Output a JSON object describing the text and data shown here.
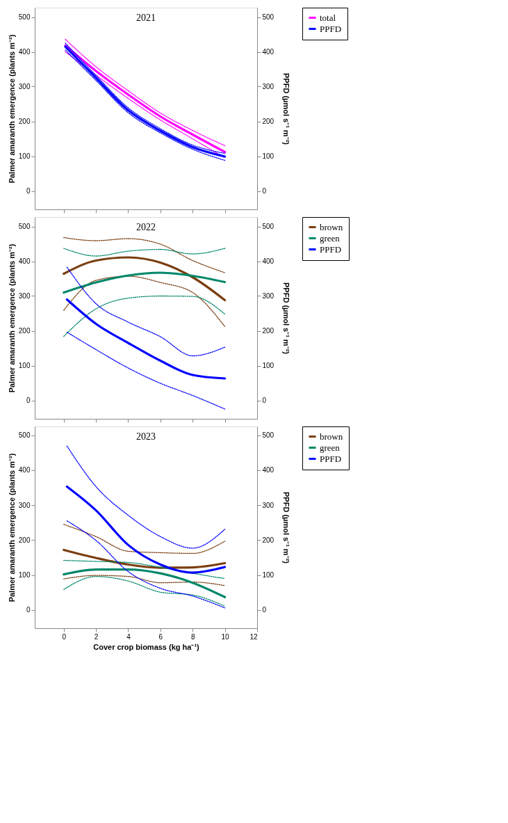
{
  "chart_data": [
    {
      "type": "line",
      "title": "2021",
      "ylabel": "Palmer amaranth emergence (plants m⁻²)",
      "y2label": "PPFD (µmol s⁻¹ m⁻²)",
      "xlim": [
        -1.8,
        12
      ],
      "xticks": [
        0,
        2,
        4,
        6,
        8,
        10
      ],
      "ylim": [
        -53,
        527
      ],
      "yticks": [
        0,
        100,
        200,
        300,
        400,
        500
      ],
      "y2lim": [
        -53,
        527
      ],
      "y2ticks": [
        0,
        100,
        200,
        300,
        400,
        500
      ],
      "tick_labels": "y",
      "grid": false,
      "line_style": "solid",
      "legend": "right",
      "series": [
        {
          "name": "total",
          "color": "#ff00ff",
          "x": [
            0.1,
            2,
            4,
            6,
            8,
            10
          ],
          "values": [
            418,
            345,
            277,
            214,
            162,
            112
          ]
        },
        {
          "color": "#ff00ff",
          "line_style": "dotted",
          "x": [
            0.1,
            2,
            4,
            6,
            8,
            10
          ],
          "values": [
            400,
            333,
            266,
            204,
            150,
            95
          ]
        },
        {
          "color": "#ff00ff",
          "line_style": "dotted",
          "x": [
            0.1,
            2,
            4,
            6,
            8,
            10
          ],
          "values": [
            436,
            357,
            288,
            224,
            174,
            130
          ]
        },
        {
          "name": "PPFD",
          "color": "#0000ff",
          "axis": "y2",
          "x": [
            0.1,
            2,
            4,
            6,
            8,
            10
          ],
          "values": [
            415,
            325,
            232,
            173,
            126,
            99
          ]
        },
        {
          "color": "#0000ff",
          "axis": "y2",
          "line_style": "dotted",
          "x": [
            0.1,
            2,
            4,
            6,
            8,
            10
          ],
          "values": [
            405,
            318,
            225,
            167,
            120,
            88
          ]
        },
        {
          "color": "#0000ff",
          "axis": "y2",
          "line_style": "dotted",
          "x": [
            0.1,
            2,
            4,
            6,
            8,
            10
          ],
          "values": [
            425,
            332,
            239,
            179,
            132,
            108
          ]
        }
      ]
    },
    {
      "type": "line",
      "title": "2022",
      "ylabel": "Palmer amaranth emergence (plants m⁻²)",
      "y2label": "PPFD (µmol s⁻¹ m⁻²)",
      "xlim": [
        -1.8,
        12
      ],
      "xticks": [
        0,
        2,
        4,
        6,
        8,
        10
      ],
      "ylim": [
        -53,
        527
      ],
      "yticks": [
        0,
        100,
        200,
        300,
        400,
        500
      ],
      "y2lim": [
        -53,
        527
      ],
      "y2ticks": [
        0,
        100,
        200,
        300,
        400,
        500
      ],
      "tick_labels": "y",
      "grid": false,
      "line_style": "solid",
      "legend": "right",
      "series": [
        {
          "name": "brown",
          "color": "#7a3e10",
          "x": [
            0,
            2,
            4,
            6,
            8,
            10
          ],
          "values": [
            364,
            402,
            411,
            396,
            354,
            288
          ]
        },
        {
          "color": "#7a3e10",
          "line_style": "dotted",
          "x": [
            0,
            2,
            4,
            6,
            8,
            10
          ],
          "values": [
            259,
            345,
            357,
            339,
            310,
            212
          ]
        },
        {
          "color": "#7a3e10",
          "line_style": "dotted",
          "x": [
            0,
            2,
            4,
            6,
            8,
            10
          ],
          "values": [
            468,
            459,
            465,
            449,
            402,
            367
          ]
        },
        {
          "name": "green",
          "color": "#00876a",
          "x": [
            0,
            2,
            4,
            6,
            8,
            10
          ],
          "values": [
            310,
            339,
            359,
            367,
            358,
            340
          ]
        },
        {
          "color": "#00876a",
          "line_style": "dotted",
          "x": [
            0,
            2,
            4,
            6,
            8,
            10
          ],
          "values": [
            184,
            263,
            294,
            300,
            299,
            248
          ]
        },
        {
          "color": "#00876a",
          "line_style": "dotted",
          "x": [
            0,
            2,
            4,
            6,
            8,
            10
          ],
          "values": [
            437,
            415,
            429,
            434,
            421,
            437
          ]
        },
        {
          "name": "PPFD",
          "color": "#0000ff",
          "axis": "y2",
          "x": [
            0.2,
            2,
            4,
            6,
            8,
            10
          ],
          "values": [
            290,
            220,
            165,
            114,
            73,
            63
          ]
        },
        {
          "color": "#0000ff",
          "axis": "y2",
          "line_style": "dotted",
          "x": [
            0.2,
            2,
            4,
            6,
            8,
            10
          ],
          "values": [
            196,
            146,
            93,
            49,
            14,
            -25
          ]
        },
        {
          "color": "#0000ff",
          "axis": "y2",
          "line_style": "dotted",
          "x": [
            0.2,
            2,
            4,
            6,
            8,
            10
          ],
          "values": [
            383,
            278,
            225,
            183,
            128,
            153
          ]
        }
      ]
    },
    {
      "type": "line",
      "title": "2023",
      "xlabel": "Cover crop biomass (kg ha⁻¹)",
      "ylabel": "Palmer amaranth emergence (plants m⁻²)",
      "y2label": "PPFD (µmol s⁻¹ m⁻²)",
      "xlim": [
        -1.8,
        12
      ],
      "xticks": [
        0,
        2,
        4,
        6,
        8,
        10,
        12
      ],
      "ylim": [
        -52,
        525
      ],
      "yticks": [
        0,
        100,
        200,
        300,
        400,
        500
      ],
      "y2lim": [
        -52,
        525
      ],
      "y2ticks": [
        0,
        100,
        200,
        300,
        400,
        500
      ],
      "grid": false,
      "line_style": "solid",
      "legend": "right",
      "series": [
        {
          "name": "brown",
          "color": "#7a3e10",
          "x": [
            0,
            2,
            4,
            6,
            8,
            10
          ],
          "values": [
            172,
            149,
            130,
            121,
            122,
            134
          ]
        },
        {
          "color": "#7a3e10",
          "line_style": "dotted",
          "x": [
            0,
            2,
            4,
            6,
            8,
            10
          ],
          "values": [
            89,
            99,
            96,
            78,
            80,
            70
          ]
        },
        {
          "color": "#7a3e10",
          "line_style": "dotted",
          "x": [
            0,
            2,
            4,
            6,
            8,
            10
          ],
          "values": [
            245,
            210,
            168,
            164,
            162,
            197
          ]
        },
        {
          "name": "green",
          "color": "#00876a",
          "x": [
            0,
            2,
            4,
            6,
            8,
            10
          ],
          "values": [
            102,
            116,
            116,
            105,
            78,
            37
          ]
        },
        {
          "color": "#00876a",
          "line_style": "dotted",
          "x": [
            0,
            2,
            4,
            6,
            8,
            10
          ],
          "values": [
            59,
            96,
            83,
            51,
            43,
            11
          ]
        },
        {
          "color": "#00876a",
          "line_style": "dotted",
          "x": [
            0,
            2,
            4,
            6,
            8,
            10
          ],
          "values": [
            142,
            139,
            136,
            122,
            105,
            90
          ]
        },
        {
          "name": "PPFD",
          "color": "#0000ff",
          "axis": "y2",
          "x": [
            0.2,
            2,
            4,
            6,
            8,
            10
          ],
          "values": [
            353,
            285,
            186,
            130,
            107,
            123
          ]
        },
        {
          "color": "#0000ff",
          "axis": "y2",
          "line_style": "dotted",
          "x": [
            0.2,
            2,
            4,
            6,
            8,
            10
          ],
          "values": [
            255,
            199,
            110,
            62,
            40,
            6
          ]
        },
        {
          "color": "#0000ff",
          "axis": "y2",
          "line_style": "dotted",
          "x": [
            0.2,
            2,
            4,
            6,
            8,
            10
          ],
          "values": [
            469,
            353,
            271,
            210,
            177,
            231
          ]
        }
      ]
    }
  ]
}
